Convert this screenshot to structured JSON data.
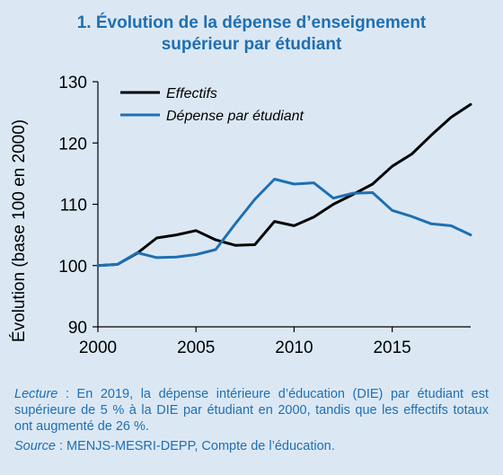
{
  "title": {
    "line1": "1. Évolution de la dépense d’enseignement",
    "line2": "supérieur par étudiant"
  },
  "chart_data": {
    "type": "line",
    "ylabel": "Évolution (base 100 en 2000)",
    "xlabel": "",
    "xlim": [
      2000,
      2019
    ],
    "ylim": [
      90,
      130
    ],
    "xticks": [
      2000,
      2005,
      2010,
      2015
    ],
    "yticks": [
      90,
      100,
      110,
      120,
      130
    ],
    "x": [
      2000,
      2001,
      2002,
      2003,
      2004,
      2005,
      2006,
      2007,
      2008,
      2009,
      2010,
      2011,
      2012,
      2013,
      2014,
      2015,
      2016,
      2017,
      2018,
      2019
    ],
    "series": [
      {
        "name": "Effectifs",
        "color": "#000000",
        "values": [
          100.0,
          100.2,
          102.0,
          104.5,
          105.0,
          105.7,
          104.2,
          103.3,
          103.4,
          107.2,
          106.5,
          107.9,
          110.0,
          111.6,
          113.3,
          116.2,
          118.2,
          121.3,
          124.2,
          126.3
        ]
      },
      {
        "name": "Dépense par étudiant",
        "color": "#1f6fb2",
        "values": [
          100.0,
          100.2,
          102.1,
          101.3,
          101.4,
          101.8,
          102.6,
          106.8,
          110.8,
          114.1,
          113.3,
          113.5,
          111.0,
          111.8,
          111.9,
          109.0,
          108.0,
          106.8,
          106.5,
          105.0
        ]
      }
    ],
    "legend_position": "top-left",
    "grid": false
  },
  "notes": {
    "lecture_label": "Lecture",
    "lecture_text": " : En 2019, la dépense intérieure d’éducation (DIE) par étudiant est supérieure de 5 % à la DIE par étudiant en 2000, tandis que les effectifs totaux ont augmenté de 26 %.",
    "source_label": "Source",
    "source_text": " : MENJS-MESRI-DEPP, Compte de l’éducation."
  }
}
